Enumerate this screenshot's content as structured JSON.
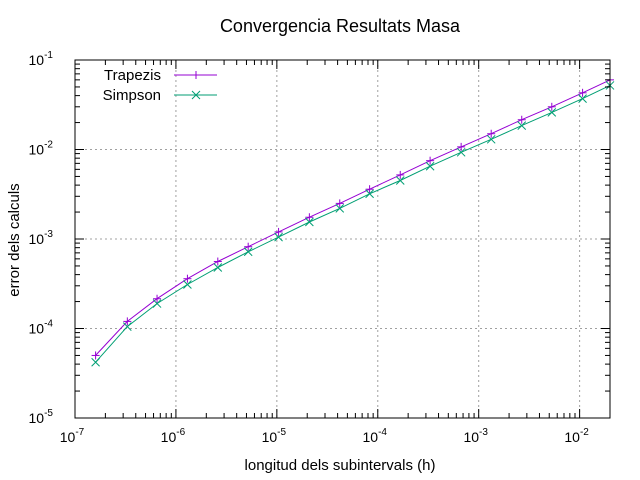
{
  "chart_data": {
    "type": "line",
    "title": "Convergencia Resultats Masa",
    "xlabel": "longitud dels subintervals (h)",
    "ylabel": "error dels calculs",
    "xscale": "log",
    "yscale": "log",
    "xlim": [
      1e-07,
      0.02
    ],
    "ylim": [
      1e-05,
      0.1
    ],
    "grid": true,
    "legend_position": "top-left",
    "x_ticks": [
      {
        "base": "10",
        "exp": "-7",
        "value": 1e-07
      },
      {
        "base": "10",
        "exp": "-6",
        "value": 1e-06
      },
      {
        "base": "10",
        "exp": "-5",
        "value": 1e-05
      },
      {
        "base": "10",
        "exp": "-4",
        "value": 0.0001
      },
      {
        "base": "10",
        "exp": "-3",
        "value": 0.001
      },
      {
        "base": "10",
        "exp": "-2",
        "value": 0.01
      }
    ],
    "y_ticks": [
      {
        "base": "10",
        "exp": "-5",
        "value": 1e-05
      },
      {
        "base": "10",
        "exp": "-4",
        "value": 0.0001
      },
      {
        "base": "10",
        "exp": "-3",
        "value": 0.001
      },
      {
        "base": "10",
        "exp": "-2",
        "value": 0.01
      },
      {
        "base": "10",
        "exp": "-1",
        "value": 0.1
      }
    ],
    "x": [
      1.6e-07,
      3.3e-07,
      6.5e-07,
      1.3e-06,
      2.6e-06,
      5.2e-06,
      1.04e-05,
      2.1e-05,
      4.2e-05,
      8.3e-05,
      0.000167,
      0.00033,
      0.00067,
      0.00133,
      0.00267,
      0.0053,
      0.0107,
      0.02
    ],
    "series": [
      {
        "name": "Trapezis",
        "color": "#9400d3",
        "marker": "plus",
        "values": [
          5e-05,
          0.00012,
          0.000215,
          0.00036,
          0.00056,
          0.00082,
          0.0012,
          0.00175,
          0.0025,
          0.0036,
          0.0052,
          0.0075,
          0.0107,
          0.015,
          0.0215,
          0.03,
          0.043,
          0.06
        ]
      },
      {
        "name": "Simpson",
        "color": "#009e73",
        "marker": "cross",
        "values": [
          4.2e-05,
          0.000105,
          0.00019,
          0.00031,
          0.00048,
          0.00072,
          0.00105,
          0.00155,
          0.0022,
          0.0032,
          0.0045,
          0.0065,
          0.0093,
          0.013,
          0.0185,
          0.026,
          0.037,
          0.052
        ]
      }
    ]
  }
}
